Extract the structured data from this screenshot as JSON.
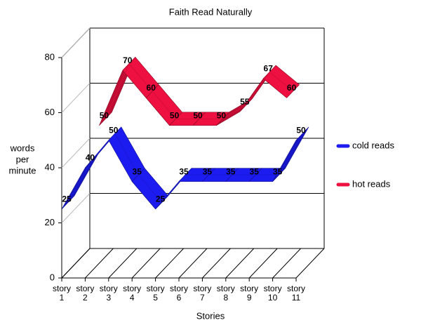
{
  "chart_data": {
    "type": "line3d",
    "title": "Faith Read Naturally",
    "x_label": "Stories",
    "y_label_lines": [
      "words",
      "per",
      "minute"
    ],
    "categories": [
      "story 1",
      "story 2",
      "story 3",
      "story 4",
      "story 5",
      "story 6",
      "story 7",
      "story 8",
      "story 9",
      "story 10",
      "story 11"
    ],
    "series": [
      {
        "name": "cold reads",
        "color": "#1c1cf0",
        "values": [
          25,
          40,
          50,
          35,
          25,
          35,
          35,
          35,
          35,
          35,
          50
        ]
      },
      {
        "name": "hot reads",
        "color": "#ee1040",
        "values": [
          null,
          50,
          70,
          60,
          50,
          50,
          50,
          55,
          67,
          60,
          null
        ]
      }
    ],
    "ylim": [
      0,
      80
    ],
    "yticks": [
      0,
      20,
      40,
      60,
      80
    ],
    "grid": true,
    "legend": "right"
  }
}
